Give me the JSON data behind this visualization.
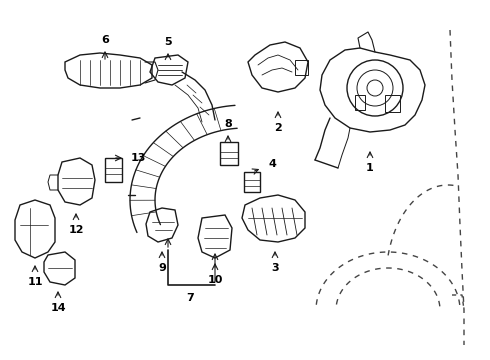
{
  "bg_color": "#ffffff",
  "line_color": "#1a1a1a",
  "label_color": "#000000",
  "figsize": [
    4.9,
    3.6
  ],
  "dpi": 100,
  "xlim": [
    0,
    490
  ],
  "ylim": [
    0,
    360
  ]
}
